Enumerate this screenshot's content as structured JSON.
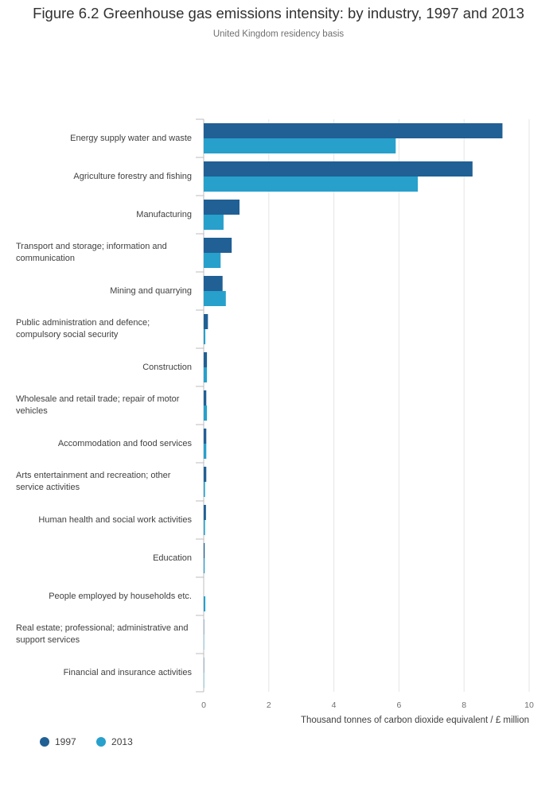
{
  "chart_data": {
    "type": "bar",
    "orientation": "horizontal",
    "title": "Figure 6.2 Greenhouse gas emissions intensity: by industry, 1997 and 2013",
    "subtitle": "United Kingdom residency basis",
    "xlabel": "Thousand tonnes of carbon dioxide equivalent / £ million",
    "ylabel": "",
    "xlim": [
      0,
      10
    ],
    "xticks": [
      "0",
      "2",
      "4",
      "6",
      "8",
      "10"
    ],
    "grid": true,
    "legend_position": "bottom-left",
    "categories": [
      "Energy supply water and waste",
      "Agriculture forestry and fishing",
      "Manufacturing",
      "Transport and storage; information and communication",
      "Mining and quarrying",
      "Public administration and defence; compulsory social security",
      "Construction",
      "Wholesale and retail trade; repair of motor vehicles",
      "Accommodation and food services",
      "Arts entertainment and recreation; other service activities",
      "Human health and social work activities",
      "Education",
      "People employed by households etc.",
      "Real estate; professional; administrative and support services",
      "Financial and insurance activities"
    ],
    "series": [
      {
        "name": "1997",
        "color": "#206095",
        "values": [
          9.18,
          8.26,
          1.1,
          0.86,
          0.58,
          0.13,
          0.1,
          0.08,
          0.08,
          0.08,
          0.07,
          0.03,
          0.0,
          0.01,
          0.01
        ]
      },
      {
        "name": "2013",
        "color": "#27a0cc",
        "values": [
          5.9,
          6.58,
          0.61,
          0.52,
          0.68,
          0.05,
          0.1,
          0.1,
          0.08,
          0.04,
          0.04,
          0.03,
          0.05,
          0.01,
          0.01
        ]
      }
    ]
  }
}
